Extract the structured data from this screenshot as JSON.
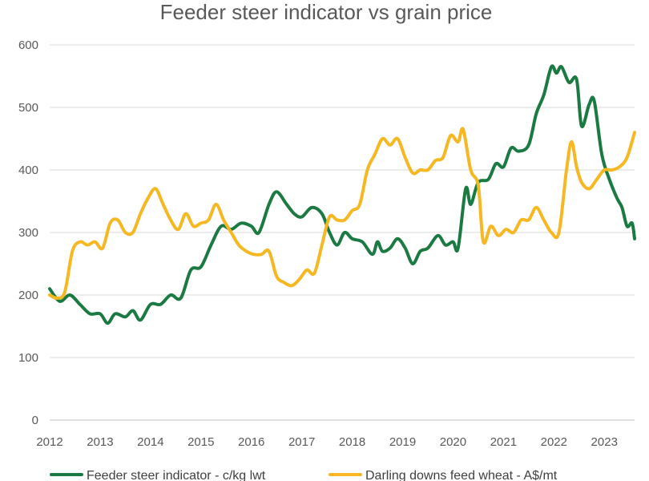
{
  "chart_data": {
    "type": "line",
    "title": "Feeder steer indicator vs grain price",
    "xlabel": "",
    "ylabel": "",
    "xlim": [
      2012,
      2023.6
    ],
    "ylim": [
      0,
      600
    ],
    "x_ticks": [
      "2012",
      "2013",
      "2014",
      "2015",
      "2016",
      "2017",
      "2018",
      "2019",
      "2020",
      "2021",
      "2022",
      "2023"
    ],
    "y_ticks": [
      "0",
      "100",
      "200",
      "300",
      "400",
      "500",
      "600"
    ],
    "grid": true,
    "legend": "bottom",
    "series": [
      {
        "name": "Feeder steer indicator - c/kg lwt",
        "color": "#1a7a42",
        "points": [
          [
            2012.0,
            210
          ],
          [
            2012.2,
            190
          ],
          [
            2012.4,
            200
          ],
          [
            2012.6,
            185
          ],
          [
            2012.8,
            170
          ],
          [
            2013.0,
            170
          ],
          [
            2013.15,
            155
          ],
          [
            2013.3,
            170
          ],
          [
            2013.5,
            165
          ],
          [
            2013.65,
            175
          ],
          [
            2013.8,
            160
          ],
          [
            2014.0,
            185
          ],
          [
            2014.2,
            185
          ],
          [
            2014.4,
            200
          ],
          [
            2014.6,
            195
          ],
          [
            2014.8,
            240
          ],
          [
            2015.0,
            245
          ],
          [
            2015.2,
            280
          ],
          [
            2015.4,
            310
          ],
          [
            2015.6,
            305
          ],
          [
            2015.8,
            315
          ],
          [
            2016.0,
            310
          ],
          [
            2016.15,
            300
          ],
          [
            2016.35,
            345
          ],
          [
            2016.5,
            365
          ],
          [
            2016.7,
            345
          ],
          [
            2016.85,
            330
          ],
          [
            2017.0,
            325
          ],
          [
            2017.2,
            340
          ],
          [
            2017.4,
            330
          ],
          [
            2017.55,
            300
          ],
          [
            2017.7,
            280
          ],
          [
            2017.85,
            300
          ],
          [
            2018.0,
            290
          ],
          [
            2018.2,
            285
          ],
          [
            2018.4,
            265
          ],
          [
            2018.5,
            285
          ],
          [
            2018.6,
            270
          ],
          [
            2018.75,
            275
          ],
          [
            2018.9,
            290
          ],
          [
            2019.05,
            275
          ],
          [
            2019.2,
            250
          ],
          [
            2019.35,
            270
          ],
          [
            2019.5,
            275
          ],
          [
            2019.7,
            295
          ],
          [
            2019.85,
            280
          ],
          [
            2020.0,
            285
          ],
          [
            2020.1,
            275
          ],
          [
            2020.25,
            370
          ],
          [
            2020.35,
            345
          ],
          [
            2020.5,
            380
          ],
          [
            2020.7,
            385
          ],
          [
            2020.85,
            410
          ],
          [
            2021.0,
            405
          ],
          [
            2021.15,
            435
          ],
          [
            2021.3,
            430
          ],
          [
            2021.5,
            440
          ],
          [
            2021.65,
            490
          ],
          [
            2021.8,
            520
          ],
          [
            2021.95,
            565
          ],
          [
            2022.05,
            555
          ],
          [
            2022.15,
            565
          ],
          [
            2022.3,
            540
          ],
          [
            2022.45,
            545
          ],
          [
            2022.55,
            470
          ],
          [
            2022.7,
            505
          ],
          [
            2022.8,
            510
          ],
          [
            2022.95,
            425
          ],
          [
            2023.1,
            385
          ],
          [
            2023.25,
            355
          ],
          [
            2023.35,
            340
          ],
          [
            2023.45,
            310
          ],
          [
            2023.55,
            315
          ],
          [
            2023.6,
            290
          ]
        ]
      },
      {
        "name": "Darling downs feed wheat - A$/mt",
        "color": "#f5b823",
        "points": [
          [
            2012.0,
            200
          ],
          [
            2012.15,
            195
          ],
          [
            2012.3,
            205
          ],
          [
            2012.45,
            270
          ],
          [
            2012.6,
            285
          ],
          [
            2012.75,
            280
          ],
          [
            2012.9,
            285
          ],
          [
            2013.05,
            275
          ],
          [
            2013.2,
            315
          ],
          [
            2013.35,
            320
          ],
          [
            2013.5,
            300
          ],
          [
            2013.65,
            300
          ],
          [
            2013.8,
            330
          ],
          [
            2013.95,
            355
          ],
          [
            2014.1,
            370
          ],
          [
            2014.25,
            345
          ],
          [
            2014.4,
            320
          ],
          [
            2014.55,
            305
          ],
          [
            2014.7,
            330
          ],
          [
            2014.85,
            310
          ],
          [
            2015.0,
            315
          ],
          [
            2015.15,
            320
          ],
          [
            2015.3,
            345
          ],
          [
            2015.45,
            320
          ],
          [
            2015.6,
            300
          ],
          [
            2015.75,
            280
          ],
          [
            2015.9,
            270
          ],
          [
            2016.05,
            265
          ],
          [
            2016.2,
            265
          ],
          [
            2016.35,
            270
          ],
          [
            2016.5,
            230
          ],
          [
            2016.65,
            220
          ],
          [
            2016.8,
            215
          ],
          [
            2016.95,
            225
          ],
          [
            2017.1,
            240
          ],
          [
            2017.25,
            235
          ],
          [
            2017.4,
            280
          ],
          [
            2017.55,
            325
          ],
          [
            2017.7,
            320
          ],
          [
            2017.85,
            320
          ],
          [
            2018.0,
            335
          ],
          [
            2018.15,
            345
          ],
          [
            2018.3,
            400
          ],
          [
            2018.45,
            425
          ],
          [
            2018.6,
            450
          ],
          [
            2018.75,
            440
          ],
          [
            2018.9,
            450
          ],
          [
            2019.05,
            420
          ],
          [
            2019.2,
            395
          ],
          [
            2019.35,
            400
          ],
          [
            2019.5,
            400
          ],
          [
            2019.65,
            415
          ],
          [
            2019.8,
            420
          ],
          [
            2019.95,
            455
          ],
          [
            2020.1,
            445
          ],
          [
            2020.2,
            465
          ],
          [
            2020.35,
            400
          ],
          [
            2020.5,
            375
          ],
          [
            2020.6,
            285
          ],
          [
            2020.75,
            310
          ],
          [
            2020.9,
            295
          ],
          [
            2021.05,
            305
          ],
          [
            2021.2,
            300
          ],
          [
            2021.35,
            320
          ],
          [
            2021.5,
            320
          ],
          [
            2021.65,
            340
          ],
          [
            2021.8,
            320
          ],
          [
            2021.95,
            300
          ],
          [
            2022.1,
            300
          ],
          [
            2022.25,
            400
          ],
          [
            2022.35,
            445
          ],
          [
            2022.45,
            405
          ],
          [
            2022.55,
            380
          ],
          [
            2022.7,
            370
          ],
          [
            2022.85,
            385
          ],
          [
            2023.0,
            400
          ],
          [
            2023.15,
            400
          ],
          [
            2023.3,
            405
          ],
          [
            2023.45,
            420
          ],
          [
            2023.6,
            460
          ]
        ]
      }
    ]
  }
}
